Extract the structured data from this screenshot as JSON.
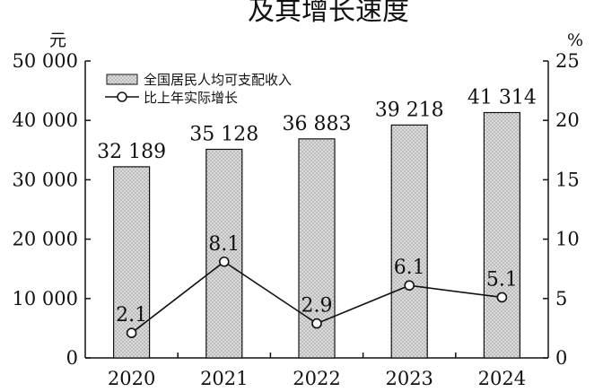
{
  "chart_data": {
    "type": "bar",
    "title": "及其增长速度",
    "categories": [
      "2020",
      "2021",
      "2022",
      "2023",
      "2024"
    ],
    "series": [
      {
        "name": "全国居民人均可支配收入",
        "type": "bar",
        "axis": "left",
        "values": [
          32189,
          35128,
          36883,
          39218,
          41314
        ],
        "labels": [
          "32 189",
          "35 128",
          "36 883",
          "39 218",
          "41 314"
        ]
      },
      {
        "name": "比上年实际增长",
        "type": "line",
        "axis": "right",
        "values": [
          2.1,
          8.1,
          2.9,
          6.1,
          5.1
        ],
        "labels": [
          "2.1",
          "8.1",
          "2.9",
          "6.1",
          "5.1"
        ]
      }
    ],
    "y_left": {
      "unit": "元",
      "ylim": [
        0,
        50000
      ],
      "ticks": [
        0,
        10000,
        20000,
        30000,
        40000,
        50000
      ],
      "tick_labels": [
        "0",
        "10 000",
        "20 000",
        "30 000",
        "40 000",
        "50 000"
      ]
    },
    "y_right": {
      "unit": "%",
      "ylim": [
        0,
        25
      ],
      "ticks": [
        0,
        5,
        10,
        15,
        20,
        25
      ],
      "tick_labels": [
        "0",
        "5",
        "10",
        "15",
        "20",
        "25"
      ]
    },
    "legend_position": "top-left",
    "grid": false,
    "colors": {
      "bar_fill": "#dcdcdc",
      "bar_dots": "#8c8c8c",
      "line": "#111111",
      "marker_fill": "#ffffff"
    }
  }
}
